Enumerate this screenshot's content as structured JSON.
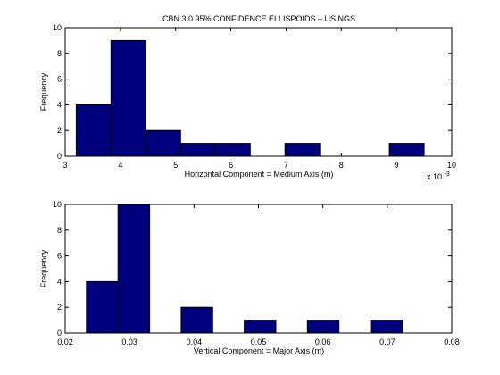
{
  "figure": {
    "title": "CBN 3.0 95% CONFIDENCE ELLISPOIDS – US NGS"
  },
  "colors": {
    "bar_fill": "#00007f",
    "bar_edge": "#000000",
    "axes": "#000000",
    "background": "#ffffff"
  },
  "chart_data": [
    {
      "type": "bar",
      "subtype": "histogram",
      "title": "CBN 3.0 95% CONFIDENCE ELLISPOIDS – US NGS",
      "xlabel": "Horizontal Component = Medium Axis (m)",
      "ylabel": "Frequency",
      "x_multiplier_label": "x 10",
      "x_multiplier_exponent": "-3",
      "xlim": [
        3,
        10
      ],
      "ylim": [
        0,
        10
      ],
      "xticks": [
        3,
        4,
        5,
        6,
        7,
        8,
        9,
        10
      ],
      "xtick_labels": [
        "3",
        "4",
        "5",
        "6",
        "7",
        "8",
        "9",
        "10"
      ],
      "yticks": [
        0,
        2,
        4,
        6,
        8,
        10
      ],
      "ytick_labels": [
        "0",
        "2",
        "4",
        "6",
        "8",
        "10"
      ],
      "grid": false,
      "bins": [
        {
          "start": 3.2,
          "end": 3.83,
          "count": 4
        },
        {
          "start": 3.83,
          "end": 4.46,
          "count": 9
        },
        {
          "start": 4.46,
          "end": 5.09,
          "count": 2
        },
        {
          "start": 5.09,
          "end": 5.72,
          "count": 1
        },
        {
          "start": 5.72,
          "end": 6.35,
          "count": 1
        },
        {
          "start": 6.35,
          "end": 6.98,
          "count": 0
        },
        {
          "start": 6.98,
          "end": 7.61,
          "count": 1
        },
        {
          "start": 7.61,
          "end": 8.24,
          "count": 0
        },
        {
          "start": 8.24,
          "end": 8.87,
          "count": 0
        },
        {
          "start": 8.87,
          "end": 9.5,
          "count": 1
        }
      ]
    },
    {
      "type": "bar",
      "subtype": "histogram",
      "title": "",
      "xlabel": "Vertical Component = Major Axis (m)",
      "ylabel": "Frequency",
      "xlim": [
        0.02,
        0.08
      ],
      "ylim": [
        0,
        10
      ],
      "xticks": [
        0.02,
        0.03,
        0.04,
        0.05,
        0.06,
        0.07,
        0.08
      ],
      "xtick_labels": [
        "0.02",
        "0.03",
        "0.04",
        "0.05",
        "0.06",
        "0.07",
        "0.08"
      ],
      "yticks": [
        0,
        2,
        4,
        6,
        8,
        10
      ],
      "ytick_labels": [
        "0",
        "2",
        "4",
        "6",
        "8",
        "10"
      ],
      "grid": false,
      "bins": [
        {
          "start": 0.0233,
          "end": 0.0282,
          "count": 4
        },
        {
          "start": 0.0282,
          "end": 0.0331,
          "count": 10
        },
        {
          "start": 0.0331,
          "end": 0.038,
          "count": 0
        },
        {
          "start": 0.038,
          "end": 0.0429,
          "count": 2
        },
        {
          "start": 0.0429,
          "end": 0.0478,
          "count": 0
        },
        {
          "start": 0.0478,
          "end": 0.0527,
          "count": 1
        },
        {
          "start": 0.0527,
          "end": 0.0576,
          "count": 0
        },
        {
          "start": 0.0576,
          "end": 0.0625,
          "count": 1
        },
        {
          "start": 0.0625,
          "end": 0.0674,
          "count": 0
        },
        {
          "start": 0.0674,
          "end": 0.0723,
          "count": 1
        }
      ]
    }
  ]
}
